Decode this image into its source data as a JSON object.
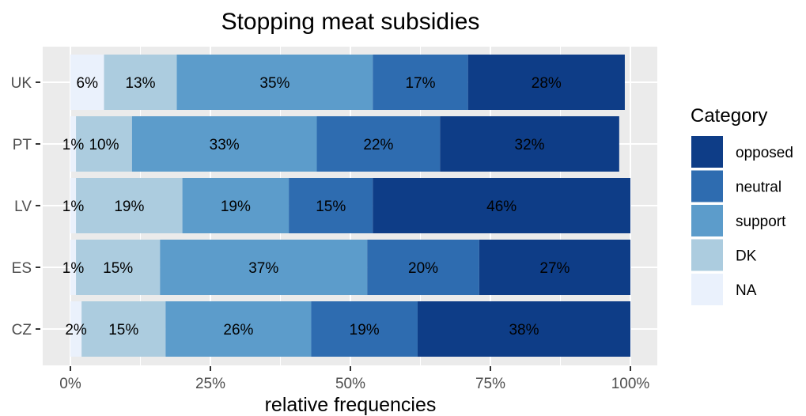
{
  "chart_data": {
    "type": "bar",
    "orientation": "horizontal",
    "stacked": true,
    "title": "Stopping meat subsidies",
    "xlabel": "relative frequencies",
    "ylabel": "",
    "xlim": [
      0,
      100
    ],
    "x_ticks": [
      "0%",
      "25%",
      "50%",
      "75%",
      "100%"
    ],
    "categories": [
      "UK",
      "PT",
      "LV",
      "ES",
      "CZ"
    ],
    "series": [
      {
        "name": "NA",
        "color": "#eaf1fc",
        "values": [
          6,
          1,
          1,
          1,
          2
        ],
        "labels": [
          "6%",
          "1%",
          "1%",
          "1%",
          "2%"
        ]
      },
      {
        "name": "DK",
        "color": "#acccdf",
        "values": [
          13,
          10,
          19,
          15,
          15
        ],
        "labels": [
          "13%",
          "10%",
          "19%",
          "15%",
          "15%"
        ]
      },
      {
        "name": "support",
        "color": "#5c9ccb",
        "values": [
          35,
          33,
          19,
          37,
          26
        ],
        "labels": [
          "35%",
          "33%",
          "19%",
          "37%",
          "26%"
        ]
      },
      {
        "name": "neutral",
        "color": "#2e6cb0",
        "values": [
          17,
          22,
          15,
          20,
          19
        ],
        "labels": [
          "17%",
          "22%",
          "15%",
          "20%",
          "19%"
        ]
      },
      {
        "name": "opposed",
        "color": "#0e3d87",
        "values": [
          28,
          32,
          46,
          27,
          38
        ],
        "labels": [
          "28%",
          "32%",
          "46%",
          "27%",
          "38%"
        ]
      }
    ],
    "legend": {
      "title": "Category",
      "position": "right",
      "items": [
        "opposed",
        "neutral",
        "support",
        "DK",
        "NA"
      ]
    },
    "grid": true,
    "panel_background": "#ebebeb",
    "grid_color": "#ffffff"
  }
}
